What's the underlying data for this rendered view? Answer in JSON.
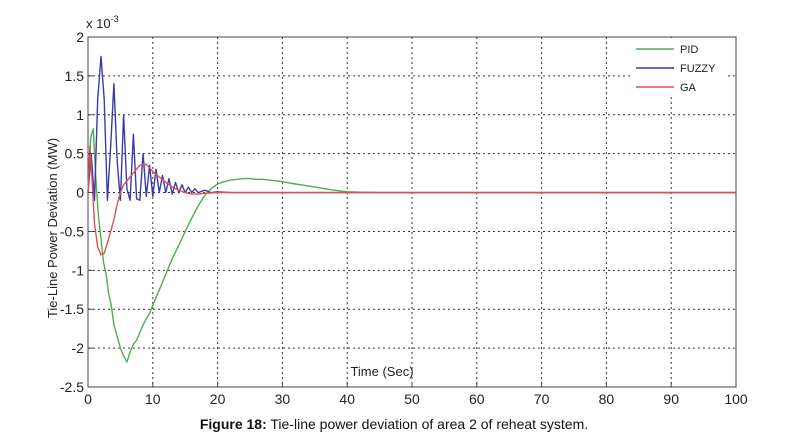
{
  "caption": {
    "label": "Figure 18:",
    "text": " Tie-line power deviation of area 2 of reheat system."
  },
  "chart_data": {
    "type": "line",
    "xlabel": "Time (Sec)",
    "ylabel": "Tie-Line Power Deviation (MW)",
    "y_multiplier": "x 10",
    "y_multiplier_exponent": "-3",
    "xlim": [
      0,
      100
    ],
    "ylim": [
      -2.5,
      2
    ],
    "x_ticks": [
      0,
      10,
      20,
      30,
      40,
      50,
      60,
      70,
      80,
      90,
      100
    ],
    "x_tick_labels": [
      "0",
      "10",
      "20",
      "30",
      "40",
      "50",
      "60",
      "70",
      "80",
      "90",
      "100"
    ],
    "y_ticks": [
      2,
      1.5,
      1,
      0.5,
      0,
      -0.5,
      -1,
      -1.5,
      -2,
      -2.5
    ],
    "y_tick_labels": [
      "2",
      "1.5",
      "1",
      "0.5",
      "0",
      "-0.5",
      "-1",
      "-1.5",
      "-2",
      "-2.5"
    ],
    "grid": true,
    "legend_position": "top-right",
    "series": [
      {
        "name": "PID",
        "color": "#4caf50",
        "x": [
          0,
          0.4,
          0.8,
          1.2,
          1.6,
          2.0,
          2.4,
          2.8,
          3.2,
          3.6,
          4.0,
          4.5,
          5.0,
          5.5,
          6.0,
          6.5,
          7.0,
          7.5,
          8.0,
          8.5,
          9,
          9.5,
          10,
          11,
          12,
          13,
          14,
          15,
          16,
          17,
          18,
          19,
          20,
          21,
          22,
          23,
          24,
          25,
          26,
          27,
          28,
          30,
          32,
          35,
          38,
          40,
          42,
          45,
          50,
          60,
          80,
          100
        ],
        "y": [
          0,
          0.7,
          0.82,
          0.2,
          -0.3,
          -0.6,
          -0.9,
          -1.05,
          -1.3,
          -1.45,
          -1.7,
          -1.85,
          -2.0,
          -2.1,
          -2.18,
          -2.05,
          -1.95,
          -1.9,
          -1.8,
          -1.7,
          -1.62,
          -1.55,
          -1.45,
          -1.25,
          -1.05,
          -0.85,
          -0.68,
          -0.5,
          -0.33,
          -0.17,
          -0.04,
          0.05,
          0.11,
          0.14,
          0.16,
          0.17,
          0.18,
          0.18,
          0.17,
          0.17,
          0.16,
          0.14,
          0.11,
          0.07,
          0.03,
          0.01,
          0.005,
          0,
          0,
          0,
          0,
          0
        ]
      },
      {
        "name": "FUZZY",
        "color": "#3a3aa8",
        "x": [
          0,
          0.5,
          1.0,
          1.5,
          2.0,
          2.5,
          3.0,
          3.5,
          4.0,
          4.5,
          5.0,
          5.5,
          6.0,
          6.5,
          7.0,
          7.5,
          8.0,
          8.5,
          9.0,
          9.5,
          10.0,
          10.5,
          11.0,
          11.5,
          12.0,
          12.5,
          13.0,
          13.5,
          14.0,
          14.5,
          15.0,
          15.5,
          16.0,
          16.5,
          17.0,
          18,
          19,
          20,
          22,
          25,
          30,
          100
        ],
        "y": [
          0,
          0.5,
          -0.1,
          1.2,
          1.75,
          1.2,
          -0.1,
          0.6,
          1.4,
          0.4,
          -0.1,
          1.0,
          0.05,
          -0.1,
          0.75,
          -0.08,
          -0.1,
          0.5,
          -0.05,
          0.35,
          -0.05,
          0.3,
          0.0,
          0.22,
          0.0,
          0.18,
          -0.02,
          0.13,
          0.0,
          0.1,
          0.0,
          0.07,
          0.0,
          0.05,
          0.0,
          0.03,
          0.0,
          0.01,
          0,
          0,
          0,
          0
        ]
      },
      {
        "name": "GA",
        "color": "#e05050",
        "x": [
          0,
          0.3,
          0.6,
          1.0,
          1.5,
          2.0,
          2.5,
          3.0,
          3.5,
          4.0,
          4.5,
          5.0,
          5.5,
          6.0,
          6.5,
          7.0,
          7.5,
          8.0,
          8.5,
          9.0,
          9.5,
          10.0,
          11,
          12,
          13,
          14,
          15,
          16,
          17,
          18,
          20,
          22,
          25,
          30,
          100
        ],
        "y": [
          0,
          0.6,
          0.2,
          -0.4,
          -0.7,
          -0.8,
          -0.78,
          -0.65,
          -0.5,
          -0.35,
          -0.15,
          0.0,
          0.1,
          0.15,
          0.2,
          0.25,
          0.3,
          0.35,
          0.37,
          0.36,
          0.32,
          0.27,
          0.2,
          0.13,
          0.07,
          0.03,
          0.0,
          -0.02,
          -0.02,
          -0.01,
          0.0,
          0.0,
          0,
          0,
          0
        ]
      }
    ]
  }
}
